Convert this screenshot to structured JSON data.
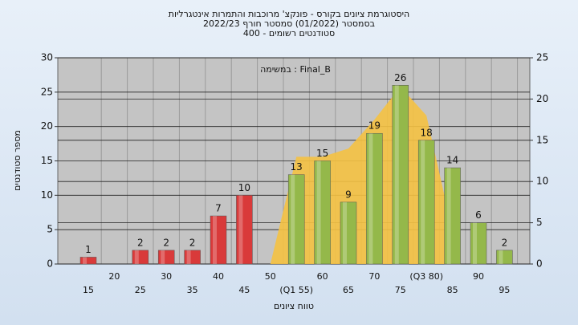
{
  "chart_data": {
    "type": "bar",
    "title": [
      "היסטוגרמת ציונים בקורס - פונקצ' מרוכבות והתמרות אינטגרליות",
      "בסמסטר  (01/2022)  סמסטר חורף  2022/23",
      "סטודנטים רשומים - 400"
    ],
    "annotation": "במשימה : Final_B",
    "y_label": "מספר סטודנטים",
    "x_label": "טווח ציונים",
    "categories": [
      "15",
      "20",
      "25",
      "30",
      "35",
      "40",
      "45",
      "50",
      "(Q1 55)",
      "60",
      "65",
      "70",
      "75",
      "(Q3 80)",
      "85",
      "90",
      "95"
    ],
    "values": [
      1,
      null,
      2,
      2,
      2,
      7,
      10,
      null,
      13,
      15,
      9,
      19,
      26,
      18,
      14,
      6,
      2
    ],
    "colors": [
      "#d93a3a",
      "#d93a3a",
      "#d93a3a",
      "#d93a3a",
      "#d93a3a",
      "#d93a3a",
      "#d93a3a",
      "#d93a3a",
      "#94b84a",
      "#94b84a",
      "#94b84a",
      "#94b84a",
      "#94b84a",
      "#94b84a",
      "#94b84a",
      "#94b84a",
      "#94b84a"
    ],
    "area": {
      "color": "#f5c242",
      "axis": "y2",
      "values": [
        null,
        null,
        null,
        null,
        null,
        null,
        null,
        0,
        13,
        13,
        14,
        17.5,
        21.5,
        18,
        4,
        null,
        null
      ]
    },
    "ylim": [
      0,
      30
    ],
    "yticks": [
      0,
      5,
      10,
      15,
      20,
      25,
      30
    ],
    "y2lim": [
      0,
      25
    ],
    "y2ticks": [
      0,
      5,
      10,
      15,
      20,
      25
    ],
    "grid": true
  }
}
